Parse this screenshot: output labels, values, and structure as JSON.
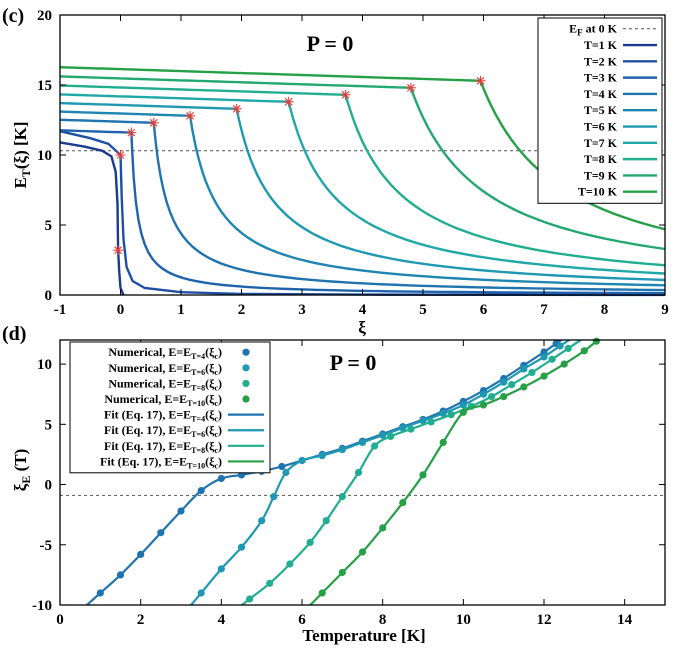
{
  "chart_data": [
    {
      "type": "line",
      "panel_label": "(c)",
      "annotation": "P = 0",
      "xlabel": "ξ",
      "ylabel": "E",
      "ylabel_sub": "T",
      "ylabel_rest": "(ξ) [K]",
      "xlim": [
        -1,
        9
      ],
      "ylim": [
        0,
        20
      ],
      "xticks": [
        "-1",
        "0",
        "1",
        "2",
        "3",
        "4",
        "5",
        "6",
        "7",
        "8",
        "9"
      ],
      "yticks": [
        "0",
        "5",
        "10",
        "15",
        "20"
      ],
      "reference_line": {
        "label": "E",
        "label_sub": "F",
        "label_rest": " at 0 K",
        "y": 10.3,
        "color": "#555555"
      },
      "series": [
        {
          "name": "T=1 K",
          "color": "#1a3b8f",
          "xc": -0.04,
          "yc": 3.2,
          "offset": -0.045,
          "left": [
            [
              -1,
              10.9
            ],
            [
              -0.6,
              10.6
            ],
            [
              -0.3,
              10.3
            ],
            [
              -0.15,
              9.9
            ],
            [
              -0.08,
              8.8
            ],
            [
              -0.05,
              6.5
            ],
            [
              -0.04,
              3.2
            ]
          ],
          "right": [
            [
              -0.04,
              3.2
            ],
            [
              -0.02,
              1.6
            ],
            [
              0.0,
              0.5
            ],
            [
              0.05,
              0.0
            ]
          ]
        },
        {
          "name": "T=2 K",
          "color": "#1f4fa3",
          "xc": 0.0,
          "yc": 10.0,
          "offset": -0.05,
          "left": [
            [
              -1,
              11.7
            ],
            [
              -0.5,
              11.2
            ],
            [
              -0.2,
              10.8
            ],
            [
              0.0,
              10.0
            ]
          ],
          "right": [
            [
              0.0,
              10.0
            ],
            [
              0.02,
              7.0
            ],
            [
              0.05,
              4.0
            ],
            [
              0.1,
              2.0
            ],
            [
              0.2,
              1.0
            ],
            [
              0.4,
              0.5
            ],
            [
              1.0,
              0.2
            ],
            [
              2.0,
              0.08
            ],
            [
              4.0,
              0.03
            ],
            [
              9.0,
              0.01
            ]
          ]
        },
        {
          "name": "T=3 K",
          "color": "#1f62ad",
          "xc": 0.18,
          "yc": 11.6,
          "offset": 0.08
        },
        {
          "name": "T=4 K",
          "color": "#1f74b0",
          "xc": 0.55,
          "yc": 12.3,
          "offset": 0.3
        },
        {
          "name": "T=5 K",
          "color": "#1f86b2",
          "xc": 1.15,
          "yc": 12.8,
          "offset": 0.7
        },
        {
          "name": "T=6 K",
          "color": "#1f98b2",
          "xc": 1.92,
          "yc": 13.3,
          "offset": 1.3
        },
        {
          "name": "T=7 K",
          "color": "#20a8a8",
          "xc": 2.78,
          "yc": 13.8,
          "offset": 2.0
        },
        {
          "name": "T=8 K",
          "color": "#20ad90",
          "xc": 3.72,
          "yc": 14.3,
          "offset": 2.8
        },
        {
          "name": "T=9 K",
          "color": "#22a870",
          "xc": 4.8,
          "yc": 14.8,
          "offset": 3.6
        },
        {
          "name": "T=10 K",
          "color": "#25a046",
          "xc": 5.95,
          "yc": 15.3,
          "offset": 4.6
        }
      ]
    },
    {
      "type": "line",
      "panel_label": "(d)",
      "annotation": "P = 0",
      "xlabel": "Temperature [K]",
      "ylabel": "ξ",
      "ylabel_sub": "E",
      "ylabel_rest": " (T)",
      "xlim": [
        0,
        15
      ],
      "ylim": [
        -10,
        12
      ],
      "xticks": [
        "0",
        "2",
        "4",
        "6",
        "8",
        "10",
        "12",
        "14"
      ],
      "yticks": [
        "-10",
        "-5",
        "0",
        "5",
        "10"
      ],
      "reference_line": {
        "y": -0.9,
        "color": "#555555"
      },
      "legend": [
        {
          "kind": "points",
          "text": "Numerical,  E=E",
          "sub": "T=4",
          "tail": "(ξ",
          "tail_sub": "c",
          "end": ")",
          "color": "#1f74b0"
        },
        {
          "kind": "points",
          "text": "Numerical,  E=E",
          "sub": "T=6",
          "tail": "(ξ",
          "tail_sub": "c",
          "end": ")",
          "color": "#1f98b2"
        },
        {
          "kind": "points",
          "text": "Numerical,  E=E",
          "sub": "T=8",
          "tail": "(ξ",
          "tail_sub": "c",
          "end": ")",
          "color": "#20ad90"
        },
        {
          "kind": "points",
          "text": "Numerical,  E=E",
          "sub": "T=10",
          "tail": "(ξ",
          "tail_sub": "c",
          "end": ")",
          "color": "#25a046"
        },
        {
          "kind": "line",
          "text": "Fit (Eq. 17),  E=E",
          "sub": "T=4",
          "tail": "(ξ",
          "tail_sub": "c",
          "end": ")",
          "color": "#1f74b0"
        },
        {
          "kind": "line",
          "text": "Fit (Eq. 17),  E=E",
          "sub": "T=6",
          "tail": "(ξ",
          "tail_sub": "c",
          "end": ")",
          "color": "#1f98b2"
        },
        {
          "kind": "line",
          "text": "Fit (Eq. 17),  E=E",
          "sub": "T=8",
          "tail": "(ξ",
          "tail_sub": "c",
          "end": ")",
          "color": "#20ad90"
        },
        {
          "kind": "line",
          "text": "Fit (Eq. 17),  E=E",
          "sub": "T=10",
          "tail": "(ξ",
          "tail_sub": "c",
          "end": ")",
          "color": "#25a046"
        }
      ],
      "series": [
        {
          "name": "E=E_T=4",
          "color": "#1f74b0",
          "points": [
            [
              1.0,
              -9.0
            ],
            [
              1.5,
              -7.5
            ],
            [
              2.0,
              -5.8
            ],
            [
              2.5,
              -4.0
            ],
            [
              3.0,
              -2.2
            ],
            [
              3.5,
              -0.5
            ],
            [
              4.0,
              0.5
            ],
            [
              4.5,
              0.8
            ],
            [
              5.0,
              1.1
            ],
            [
              5.5,
              1.5
            ],
            [
              6.0,
              2.0
            ],
            [
              6.5,
              2.5
            ],
            [
              7.0,
              3.0
            ],
            [
              7.5,
              3.6
            ],
            [
              8.0,
              4.2
            ],
            [
              8.5,
              4.8
            ],
            [
              9.0,
              5.4
            ],
            [
              9.5,
              6.1
            ],
            [
              10.0,
              6.9
            ],
            [
              10.5,
              7.8
            ],
            [
              11.0,
              8.8
            ],
            [
              11.5,
              9.9
            ],
            [
              12.0,
              11.0
            ],
            [
              12.3,
              11.7
            ]
          ]
        },
        {
          "name": "E=E_T=6",
          "color": "#1f98b2",
          "points": [
            [
              3.5,
              -9.0
            ],
            [
              4.0,
              -7.0
            ],
            [
              4.5,
              -5.2
            ],
            [
              5.0,
              -3.0
            ],
            [
              5.3,
              -1.0
            ],
            [
              5.6,
              1.0
            ],
            [
              6.0,
              2.0
            ],
            [
              6.5,
              2.4
            ],
            [
              7.0,
              2.9
            ],
            [
              7.5,
              3.5
            ],
            [
              8.0,
              4.1
            ],
            [
              8.5,
              4.7
            ],
            [
              9.0,
              5.3
            ],
            [
              9.5,
              5.9
            ],
            [
              10.0,
              6.6
            ],
            [
              10.5,
              7.5
            ],
            [
              11.0,
              8.5
            ],
            [
              11.5,
              9.6
            ],
            [
              12.0,
              10.6
            ],
            [
              12.4,
              11.5
            ]
          ]
        },
        {
          "name": "E=E_T=8",
          "color": "#20ad90",
          "points": [
            [
              4.7,
              -9.5
            ],
            [
              5.2,
              -8.2
            ],
            [
              5.7,
              -6.6
            ],
            [
              6.2,
              -4.8
            ],
            [
              6.6,
              -3.0
            ],
            [
              7.0,
              -1.0
            ],
            [
              7.4,
              1.0
            ],
            [
              7.8,
              3.2
            ],
            [
              8.2,
              4.0
            ],
            [
              8.7,
              4.6
            ],
            [
              9.2,
              5.2
            ],
            [
              9.7,
              5.8
            ],
            [
              10.2,
              6.5
            ],
            [
              10.7,
              7.3
            ],
            [
              11.2,
              8.3
            ],
            [
              11.7,
              9.3
            ],
            [
              12.2,
              10.4
            ],
            [
              12.6,
              11.3
            ]
          ]
        },
        {
          "name": "E=E_T=10",
          "color": "#25a046",
          "points": [
            [
              6.5,
              -9.0
            ],
            [
              7.0,
              -7.3
            ],
            [
              7.5,
              -5.6
            ],
            [
              8.0,
              -3.6
            ],
            [
              8.5,
              -1.5
            ],
            [
              9.0,
              0.8
            ],
            [
              9.5,
              3.5
            ],
            [
              10.0,
              6.0
            ],
            [
              10.5,
              6.6
            ],
            [
              11.0,
              7.3
            ],
            [
              11.5,
              8.1
            ],
            [
              12.0,
              9.0
            ],
            [
              12.5,
              10.0
            ],
            [
              13.0,
              11.1
            ],
            [
              13.3,
              11.9
            ]
          ]
        }
      ]
    }
  ]
}
